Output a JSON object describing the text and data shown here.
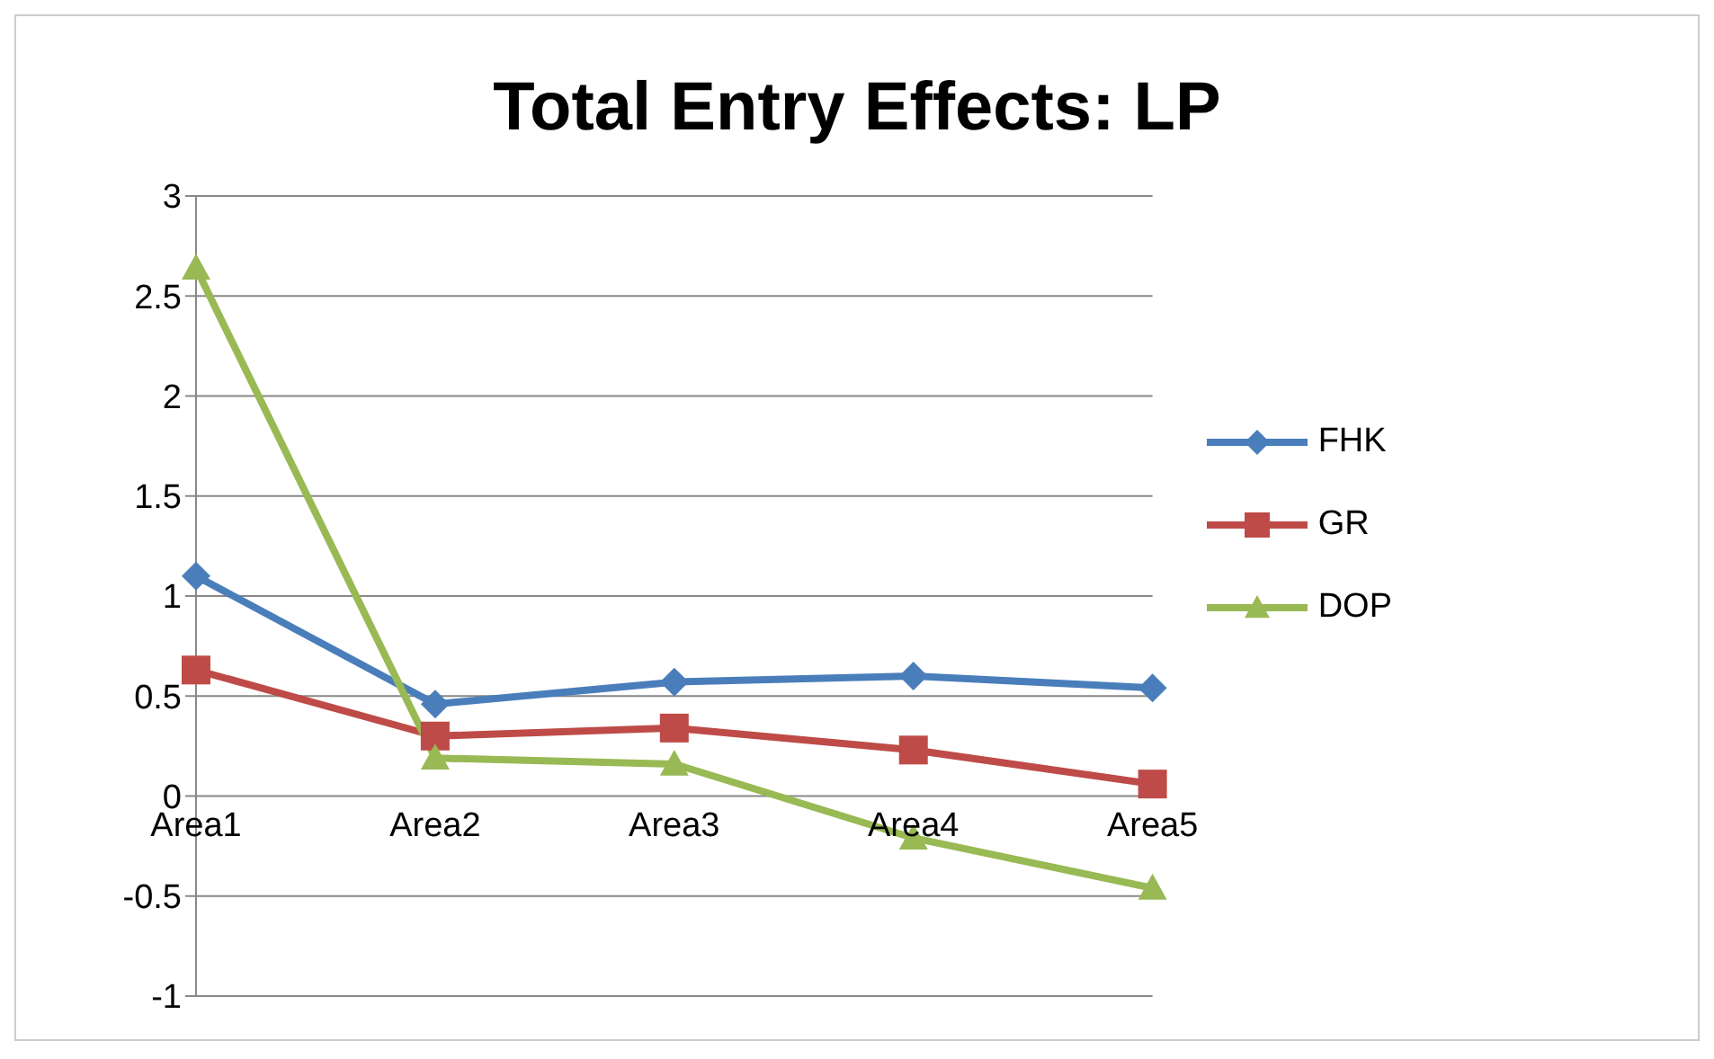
{
  "chart_data": {
    "type": "line",
    "title": "Total Entry Effects: LP",
    "categories": [
      "Area1",
      "Area2",
      "Area3",
      "Area4",
      "Area5"
    ],
    "series": [
      {
        "name": "FHK",
        "color": "#4a7ebb",
        "marker": "diamond",
        "values": [
          1.1,
          0.46,
          0.57,
          0.6,
          0.54
        ]
      },
      {
        "name": "GR",
        "color": "#be4b48",
        "marker": "square",
        "values": [
          0.63,
          0.3,
          0.34,
          0.23,
          0.06
        ]
      },
      {
        "name": "DOP",
        "color": "#98b954",
        "marker": "triangle",
        "values": [
          2.64,
          0.19,
          0.16,
          -0.21,
          -0.46
        ]
      }
    ],
    "ylim": [
      -1,
      3
    ],
    "yticks": [
      -1,
      -0.5,
      0,
      0.5,
      1,
      1.5,
      2,
      2.5,
      3
    ],
    "grid": "y",
    "legend": "right"
  }
}
